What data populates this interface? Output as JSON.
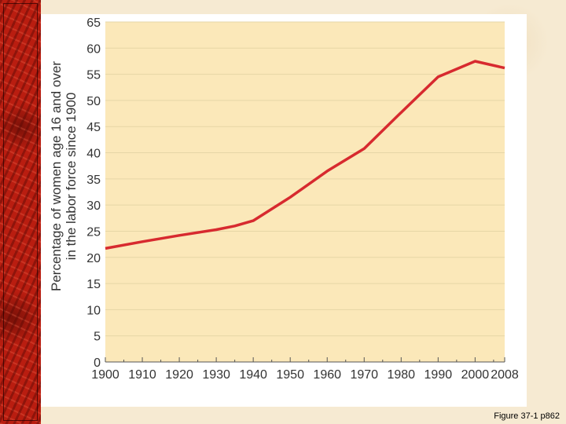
{
  "caption": "Figure 37-1 p862",
  "colors": {
    "plot_background": "#fbe8b9",
    "gridline": "#e6d6a6",
    "line": "#d72a2f"
  },
  "chart_data": {
    "type": "line",
    "title": "",
    "xlabel": "",
    "ylabel_lines": [
      "Percentage of women age 16 and over",
      "in the labor force since 1900"
    ],
    "xlim": [
      1900,
      2008
    ],
    "ylim": [
      0,
      65
    ],
    "x_ticks": [
      "1900",
      "1910",
      "1920",
      "1930",
      "1940",
      "1950",
      "1960",
      "1970",
      "1980",
      "1990",
      "2000",
      "2008"
    ],
    "x_tick_values": [
      1900,
      1910,
      1920,
      1930,
      1940,
      1950,
      1960,
      1970,
      1980,
      1990,
      2000,
      2008
    ],
    "y_ticks": [
      "0",
      "5",
      "10",
      "15",
      "20",
      "25",
      "30",
      "35",
      "40",
      "45",
      "50",
      "55",
      "60",
      "65"
    ],
    "y_tick_values": [
      0,
      5,
      10,
      15,
      20,
      25,
      30,
      35,
      40,
      45,
      50,
      55,
      60,
      65
    ],
    "grid": true,
    "series": [
      {
        "x": [
          1900,
          1910,
          1920,
          1930,
          1935,
          1940,
          1950,
          1960,
          1970,
          1980,
          1990,
          2000,
          2008
        ],
        "y": [
          21.7,
          23.0,
          24.2,
          25.3,
          26.0,
          27.0,
          31.5,
          36.5,
          40.8,
          47.7,
          54.5,
          57.5,
          56.2
        ]
      }
    ]
  }
}
